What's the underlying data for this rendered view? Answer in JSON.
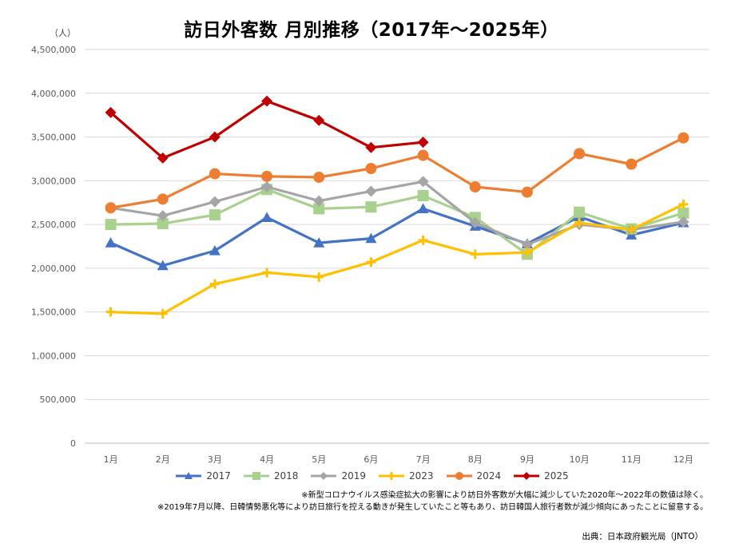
{
  "chart_data": {
    "type": "line",
    "title": "訪日外客数 月別推移（2017年～2025年）",
    "ylabel": "（人）",
    "xlabel": "",
    "categories": [
      "1月",
      "2月",
      "3月",
      "4月",
      "5月",
      "6月",
      "7月",
      "8月",
      "9月",
      "10月",
      "11月",
      "12月"
    ],
    "ylim": [
      0,
      4500000
    ],
    "yticks": [
      0,
      500000,
      1000000,
      1500000,
      2000000,
      2500000,
      3000000,
      3500000,
      4000000,
      4500000
    ],
    "ytick_labels": [
      "0",
      "500,000",
      "1,000,000",
      "1,500,000",
      "2,000,000",
      "2,500,000",
      "3,000,000",
      "3,500,000",
      "4,000,000",
      "4,500,000"
    ],
    "grid": true,
    "legend_position": "bottom",
    "series": [
      {
        "name": "2017",
        "color": "#4472C4",
        "marker": "triangle",
        "values": [
          2290000,
          2030000,
          2200000,
          2580000,
          2290000,
          2340000,
          2680000,
          2480000,
          2280000,
          2590000,
          2380000,
          2520000
        ]
      },
      {
        "name": "2018",
        "color": "#A9D18E",
        "marker": "square",
        "values": [
          2500000,
          2510000,
          2610000,
          2900000,
          2680000,
          2700000,
          2830000,
          2580000,
          2160000,
          2640000,
          2450000,
          2630000
        ]
      },
      {
        "name": "2019",
        "color": "#A5A5A5",
        "marker": "diamond",
        "values": [
          2690000,
          2600000,
          2760000,
          2930000,
          2770000,
          2880000,
          2990000,
          2520000,
          2270000,
          2500000,
          2440000,
          2530000
        ]
      },
      {
        "name": "2023",
        "color": "#FFC000",
        "marker": "plus",
        "values": [
          1500000,
          1480000,
          1820000,
          1950000,
          1900000,
          2070000,
          2320000,
          2160000,
          2180000,
          2520000,
          2440000,
          2730000
        ]
      },
      {
        "name": "2024",
        "color": "#ED7D31",
        "marker": "circle",
        "values": [
          2690000,
          2790000,
          3080000,
          3050000,
          3040000,
          3140000,
          3290000,
          2930000,
          2870000,
          3310000,
          3190000,
          3490000
        ]
      },
      {
        "name": "2025",
        "color": "#C00000",
        "marker": "diamond",
        "values": [
          3780000,
          3260000,
          3500000,
          3910000,
          3690000,
          3380000,
          3440000,
          null,
          null,
          null,
          null,
          null
        ]
      }
    ],
    "notes": [
      "※新型コロナウイルス感染症拡大の影響により訪日外客数が大幅に減少していた2020年～2022年の数値は除く。",
      "※2019年7月以降、日韓情勢悪化等により訪日旅行を控える動きが発生していたこと等もあり、訪日韓国人旅行者数が減少傾向にあったことに留意する。"
    ],
    "source": "出典：日本政府観光局（JNTO）"
  }
}
